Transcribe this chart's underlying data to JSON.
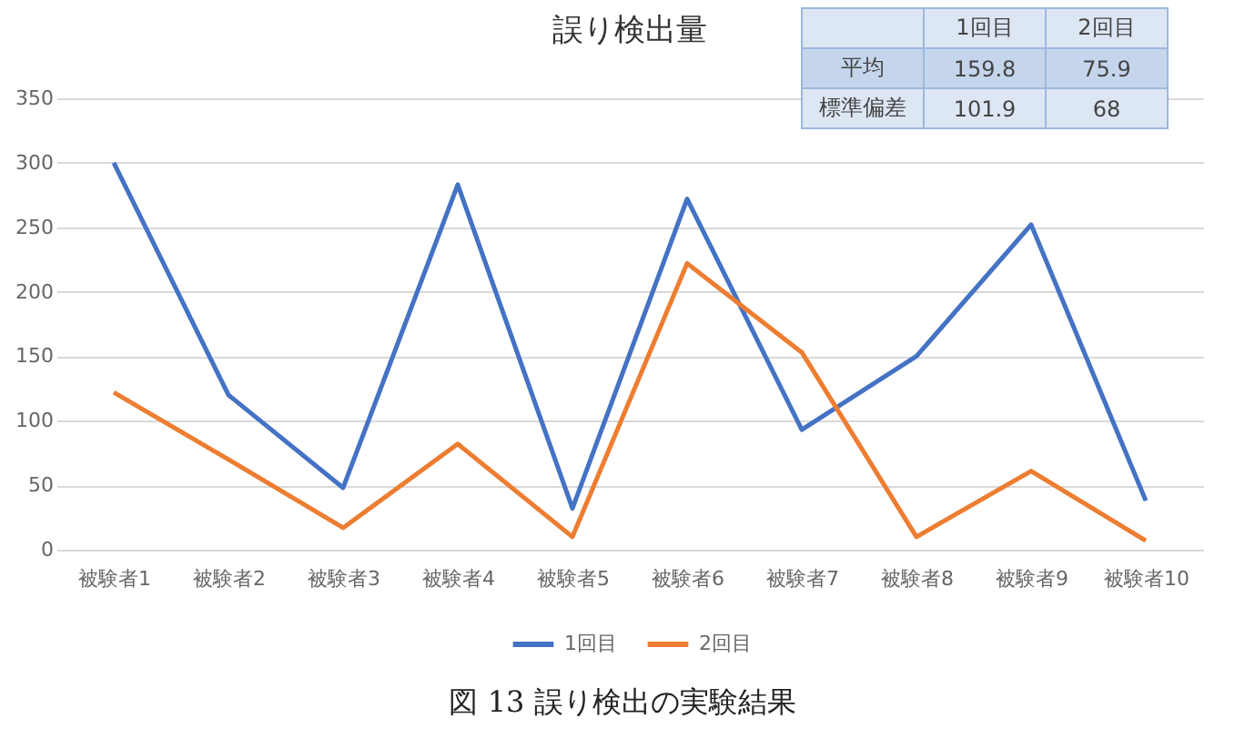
{
  "chart_data": {
    "type": "line",
    "title": "誤り検出量",
    "categories": [
      "被験者1",
      "被験者2",
      "被験者3",
      "被験者4",
      "被験者5",
      "被験者6",
      "被験者7",
      "被験者8",
      "被験者9",
      "被験者10"
    ],
    "series": [
      {
        "name": "1回目",
        "color": "#4472c4",
        "values": [
          300,
          120,
          48,
          283,
          32,
          272,
          93,
          150,
          252,
          38
        ]
      },
      {
        "name": "2回目",
        "color": "#ed7d31",
        "values": [
          122,
          70,
          17,
          82,
          10,
          222,
          153,
          10,
          61,
          7
        ]
      }
    ],
    "ylim": [
      0,
      350
    ],
    "yticks": [
      0,
      50,
      100,
      150,
      200,
      250,
      300,
      350
    ],
    "grid": "y",
    "legend": "bottom",
    "marker": "none",
    "line_style": "solid",
    "annotations": [
      "1回目",
      "2回目",
      "平均",
      "159.8",
      "75.9",
      "標準偏差",
      "101.9",
      "68",
      "図 13 誤り検出の実験結果"
    ]
  }
}
